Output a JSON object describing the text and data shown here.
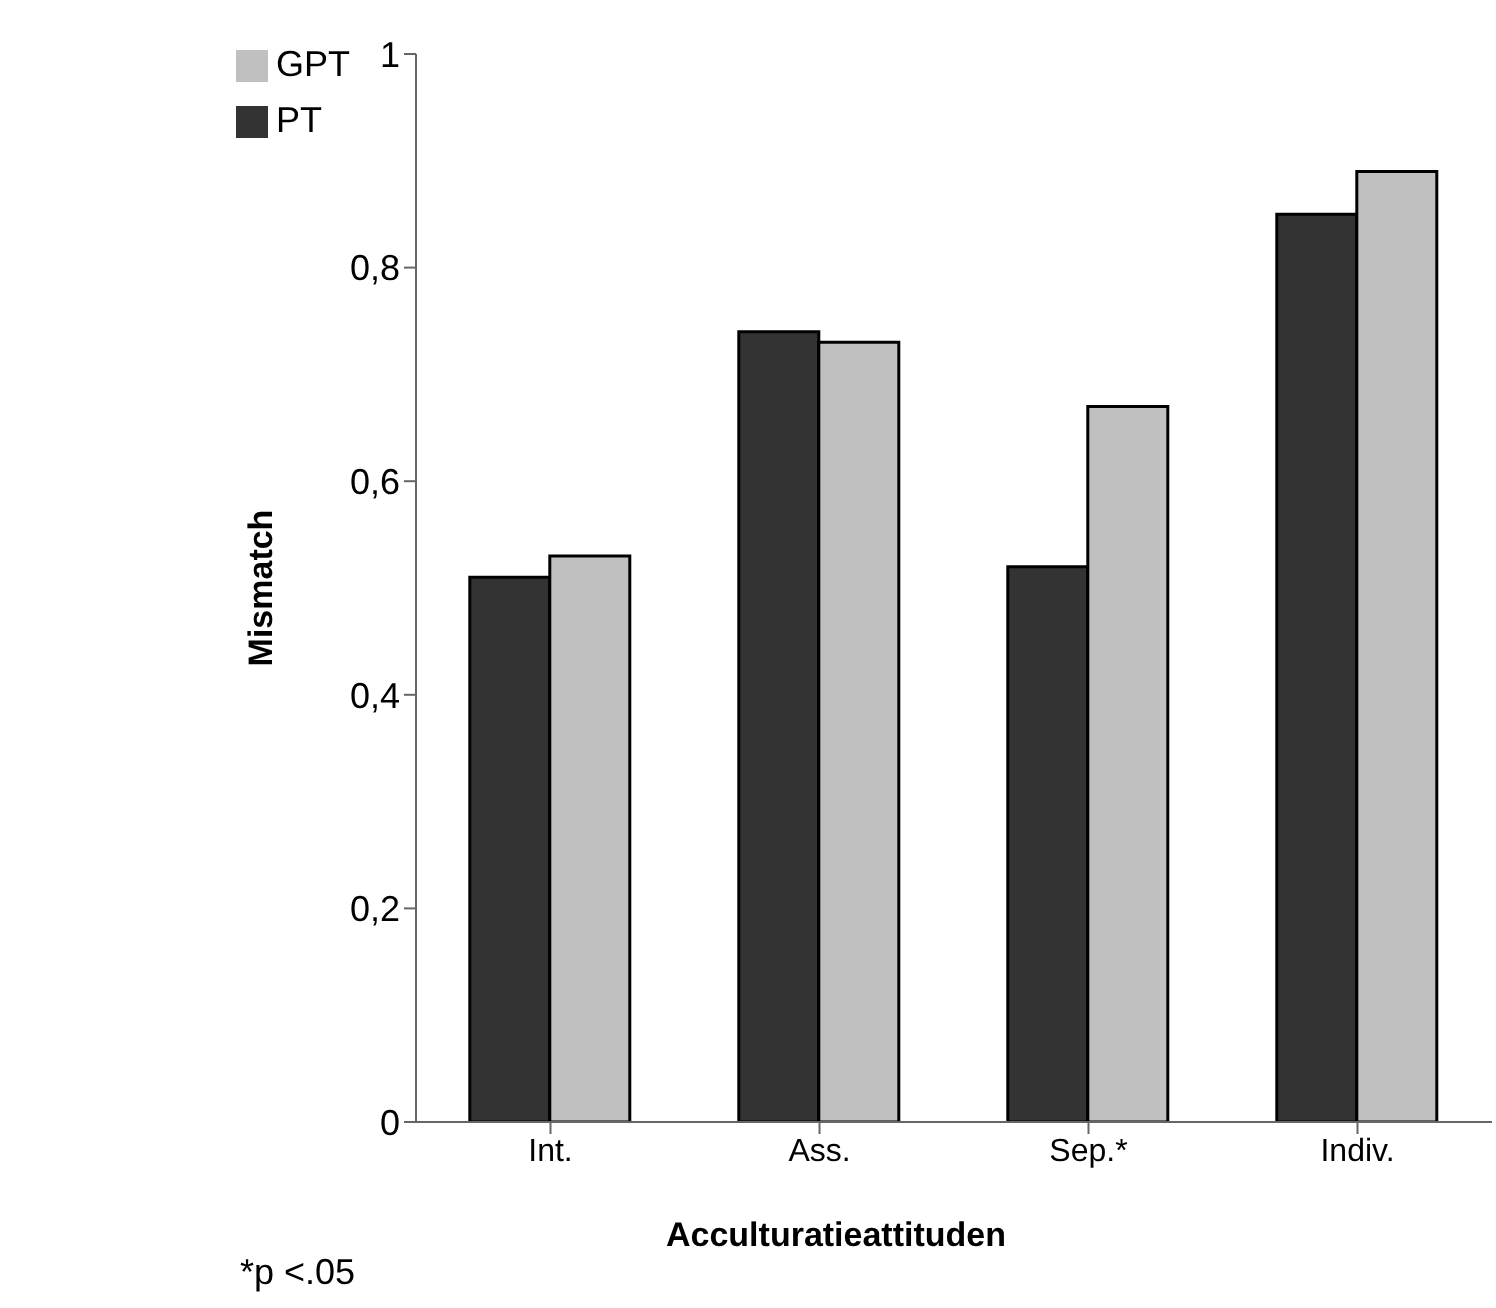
{
  "chart_data": {
    "type": "bar",
    "xlabel": "Acculturatieattituden",
    "ylabel": "Mismatch",
    "categories": [
      "Int.",
      "Ass.",
      "Sep.*",
      "Indiv."
    ],
    "series": [
      {
        "name": "PT",
        "color": "#333333",
        "values": [
          0.51,
          0.74,
          0.52,
          0.85
        ]
      },
      {
        "name": "GPT",
        "color": "#c0c0c0",
        "values": [
          0.53,
          0.73,
          0.67,
          0.89
        ]
      }
    ],
    "ylim": [
      0,
      1
    ],
    "yticks": [
      {
        "value": 0,
        "label": "0"
      },
      {
        "value": 0.2,
        "label": "0,2"
      },
      {
        "value": 0.4,
        "label": "0,4"
      },
      {
        "value": 0.6,
        "label": "0,6"
      },
      {
        "value": 0.8,
        "label": "0,8"
      },
      {
        "value": 1,
        "label": "1"
      }
    ],
    "grid": false,
    "legend": "top left",
    "annotations": [
      "*p <.05"
    ]
  }
}
